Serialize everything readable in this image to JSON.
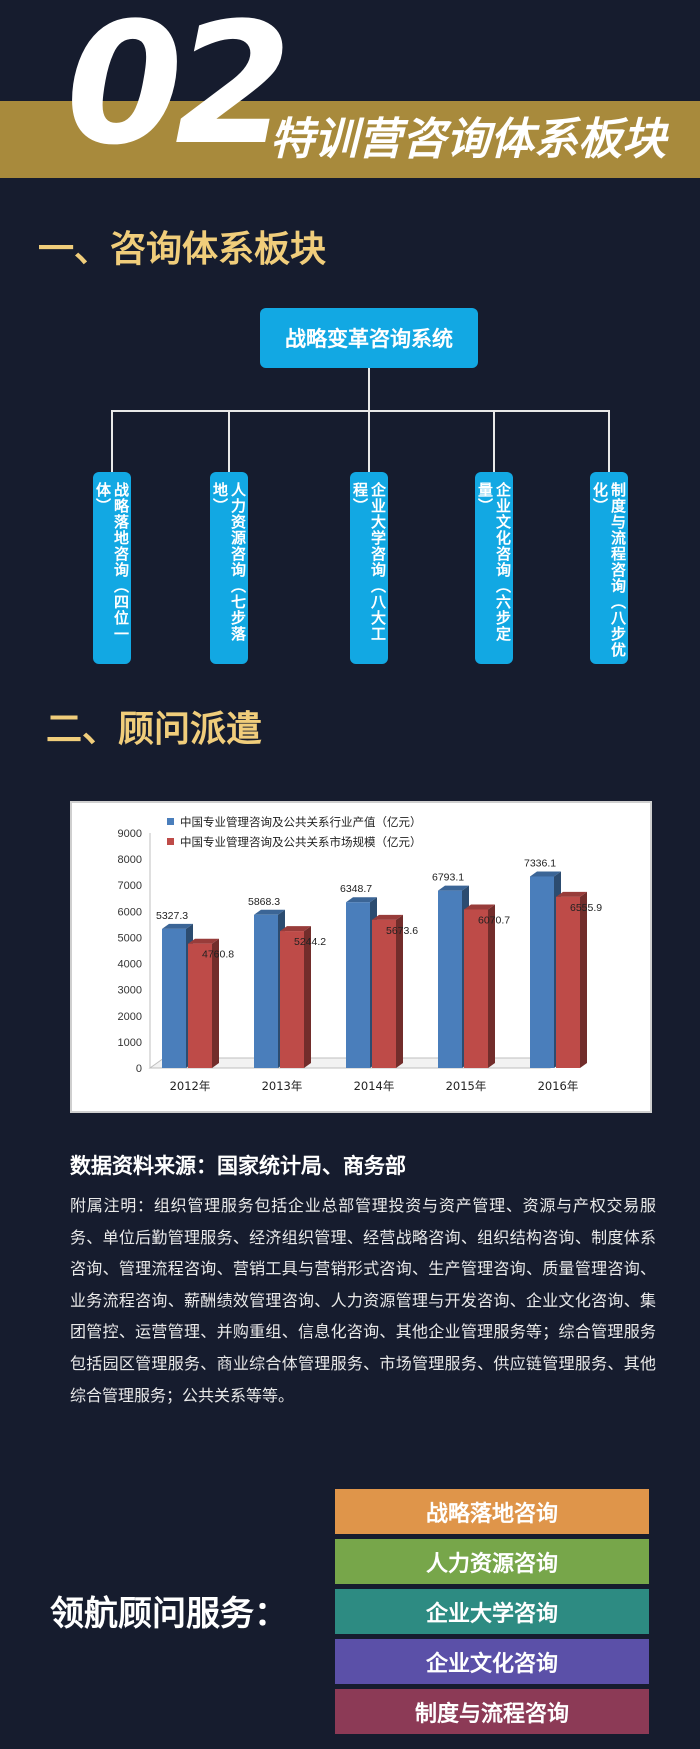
{
  "header": {
    "number": "02",
    "title": "特训营咨询体系板块"
  },
  "section1": {
    "title": "一、咨询体系板块",
    "root": "战略变革咨询系统",
    "branches": [
      "战略落地咨询（四位一体）",
      "人力资源咨询（七步落地）",
      "企业大学咨询（八大工程）",
      "企业文化咨询（六步定量）",
      "制度与流程咨询（八步优化）"
    ]
  },
  "section2": {
    "title": "二、顾问派遣"
  },
  "chart_data": {
    "type": "bar",
    "categories": [
      "2012年",
      "2013年",
      "2014年",
      "2015年",
      "2016年"
    ],
    "series": [
      {
        "name": "中国专业管理咨询及公共关系行业产值（亿元）",
        "values": [
          5327.3,
          5868.3,
          6348.7,
          6793.1,
          7336.1
        ],
        "color": "#4a7ebb"
      },
      {
        "name": "中国专业管理咨询及公共关系市场规模（亿元）",
        "values": [
          4760.8,
          5244.2,
          5673.6,
          6070.7,
          6555.9
        ],
        "color": "#be4b48"
      }
    ],
    "data_labels": [
      [
        "5327.3",
        "5868.3",
        "6348.7",
        "6793.1",
        "7336.1"
      ],
      [
        "4760.8",
        "5244.2",
        "5673.6",
        "6070.7",
        "6555.9"
      ]
    ],
    "yticks": [
      "0",
      "1000",
      "2000",
      "3000",
      "4000",
      "5000",
      "6000",
      "7000",
      "8000",
      "9000"
    ],
    "ylim": [
      0,
      9000
    ],
    "legend_position": "top-left",
    "grid": false
  },
  "source": {
    "label": "数据资料来源：国家统计局、商务部",
    "note": "附属注明：组织管理服务包括企业总部管理投资与资产管理、资源与产权交易服务、单位后勤管理服务、经济组织管理、经营战略咨询、组织结构咨询、制度体系咨询、管理流程咨询、营销工具与营销形式咨询、生产管理咨询、质量管理咨询、业务流程咨询、薪酬绩效管理咨询、人力资源管理与开发咨询、企业文化咨询、集团管控、运营管理、并购重组、信息化咨询、其他企业管理服务等；综合管理服务包括园区管理服务、商业综合体管理服务、市场管理服务、供应链管理服务、其他综合管理服务；公共关系等等。"
  },
  "services": {
    "label": "领航顾问服务：",
    "items": [
      {
        "label": "战略落地咨询",
        "color": "#df954a"
      },
      {
        "label": "人力资源咨询",
        "color": "#77a64a"
      },
      {
        "label": "企业大学咨询",
        "color": "#2d8b82"
      },
      {
        "label": "企业文化咨询",
        "color": "#5b50a8"
      },
      {
        "label": "制度与流程咨询",
        "color": "#8c3a56"
      }
    ]
  }
}
